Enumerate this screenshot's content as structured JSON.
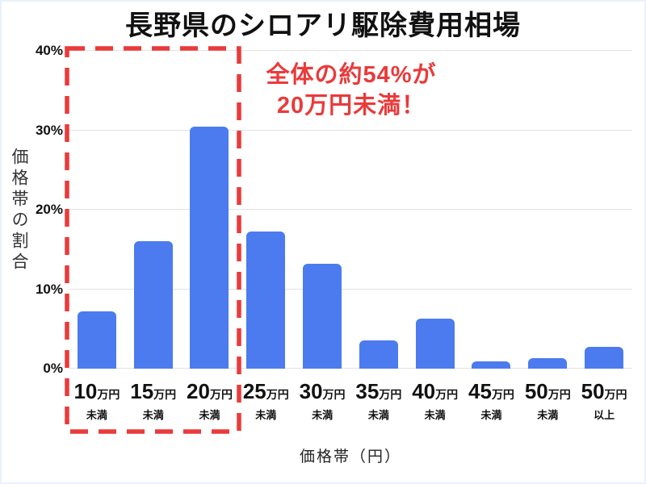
{
  "chart_data": {
    "type": "bar",
    "title": "長野県のシロアリ駆除費用相場",
    "xlabel": "価格帯（円）",
    "ylabel": "価格帯の割合",
    "ylim": [
      0,
      40
    ],
    "yticks": [
      0,
      10,
      20,
      30,
      40
    ],
    "ytick_suffix": "%",
    "grid": true,
    "legend": "none",
    "bar_color": "#4b7bee",
    "gridline_color": "#e2e2e2",
    "categories": [
      {
        "value": "10",
        "unit": "万円",
        "qualifier": "未満"
      },
      {
        "value": "15",
        "unit": "万円",
        "qualifier": "未満"
      },
      {
        "value": "20",
        "unit": "万円",
        "qualifier": "未満"
      },
      {
        "value": "25",
        "unit": "万円",
        "qualifier": "未満"
      },
      {
        "value": "30",
        "unit": "万円",
        "qualifier": "未満"
      },
      {
        "value": "35",
        "unit": "万円",
        "qualifier": "未満"
      },
      {
        "value": "40",
        "unit": "万円",
        "qualifier": "未満"
      },
      {
        "value": "45",
        "unit": "万円",
        "qualifier": "未満"
      },
      {
        "value": "50",
        "unit": "万円",
        "qualifier": "未満"
      },
      {
        "value": "50",
        "unit": "万円",
        "qualifier": "以上"
      }
    ],
    "values": [
      7.2,
      16.0,
      30.5,
      17.3,
      13.2,
      3.6,
      6.3,
      0.9,
      1.3,
      2.7
    ],
    "annotation": {
      "line1": "全体の約54%が",
      "line2": "20万円未満！",
      "color": "#ea3a3a",
      "highlighted_categories": [
        "10万円未満",
        "15万円未満",
        "20万円未満"
      ],
      "highlight_box_color": "#ea3a3a"
    }
  }
}
